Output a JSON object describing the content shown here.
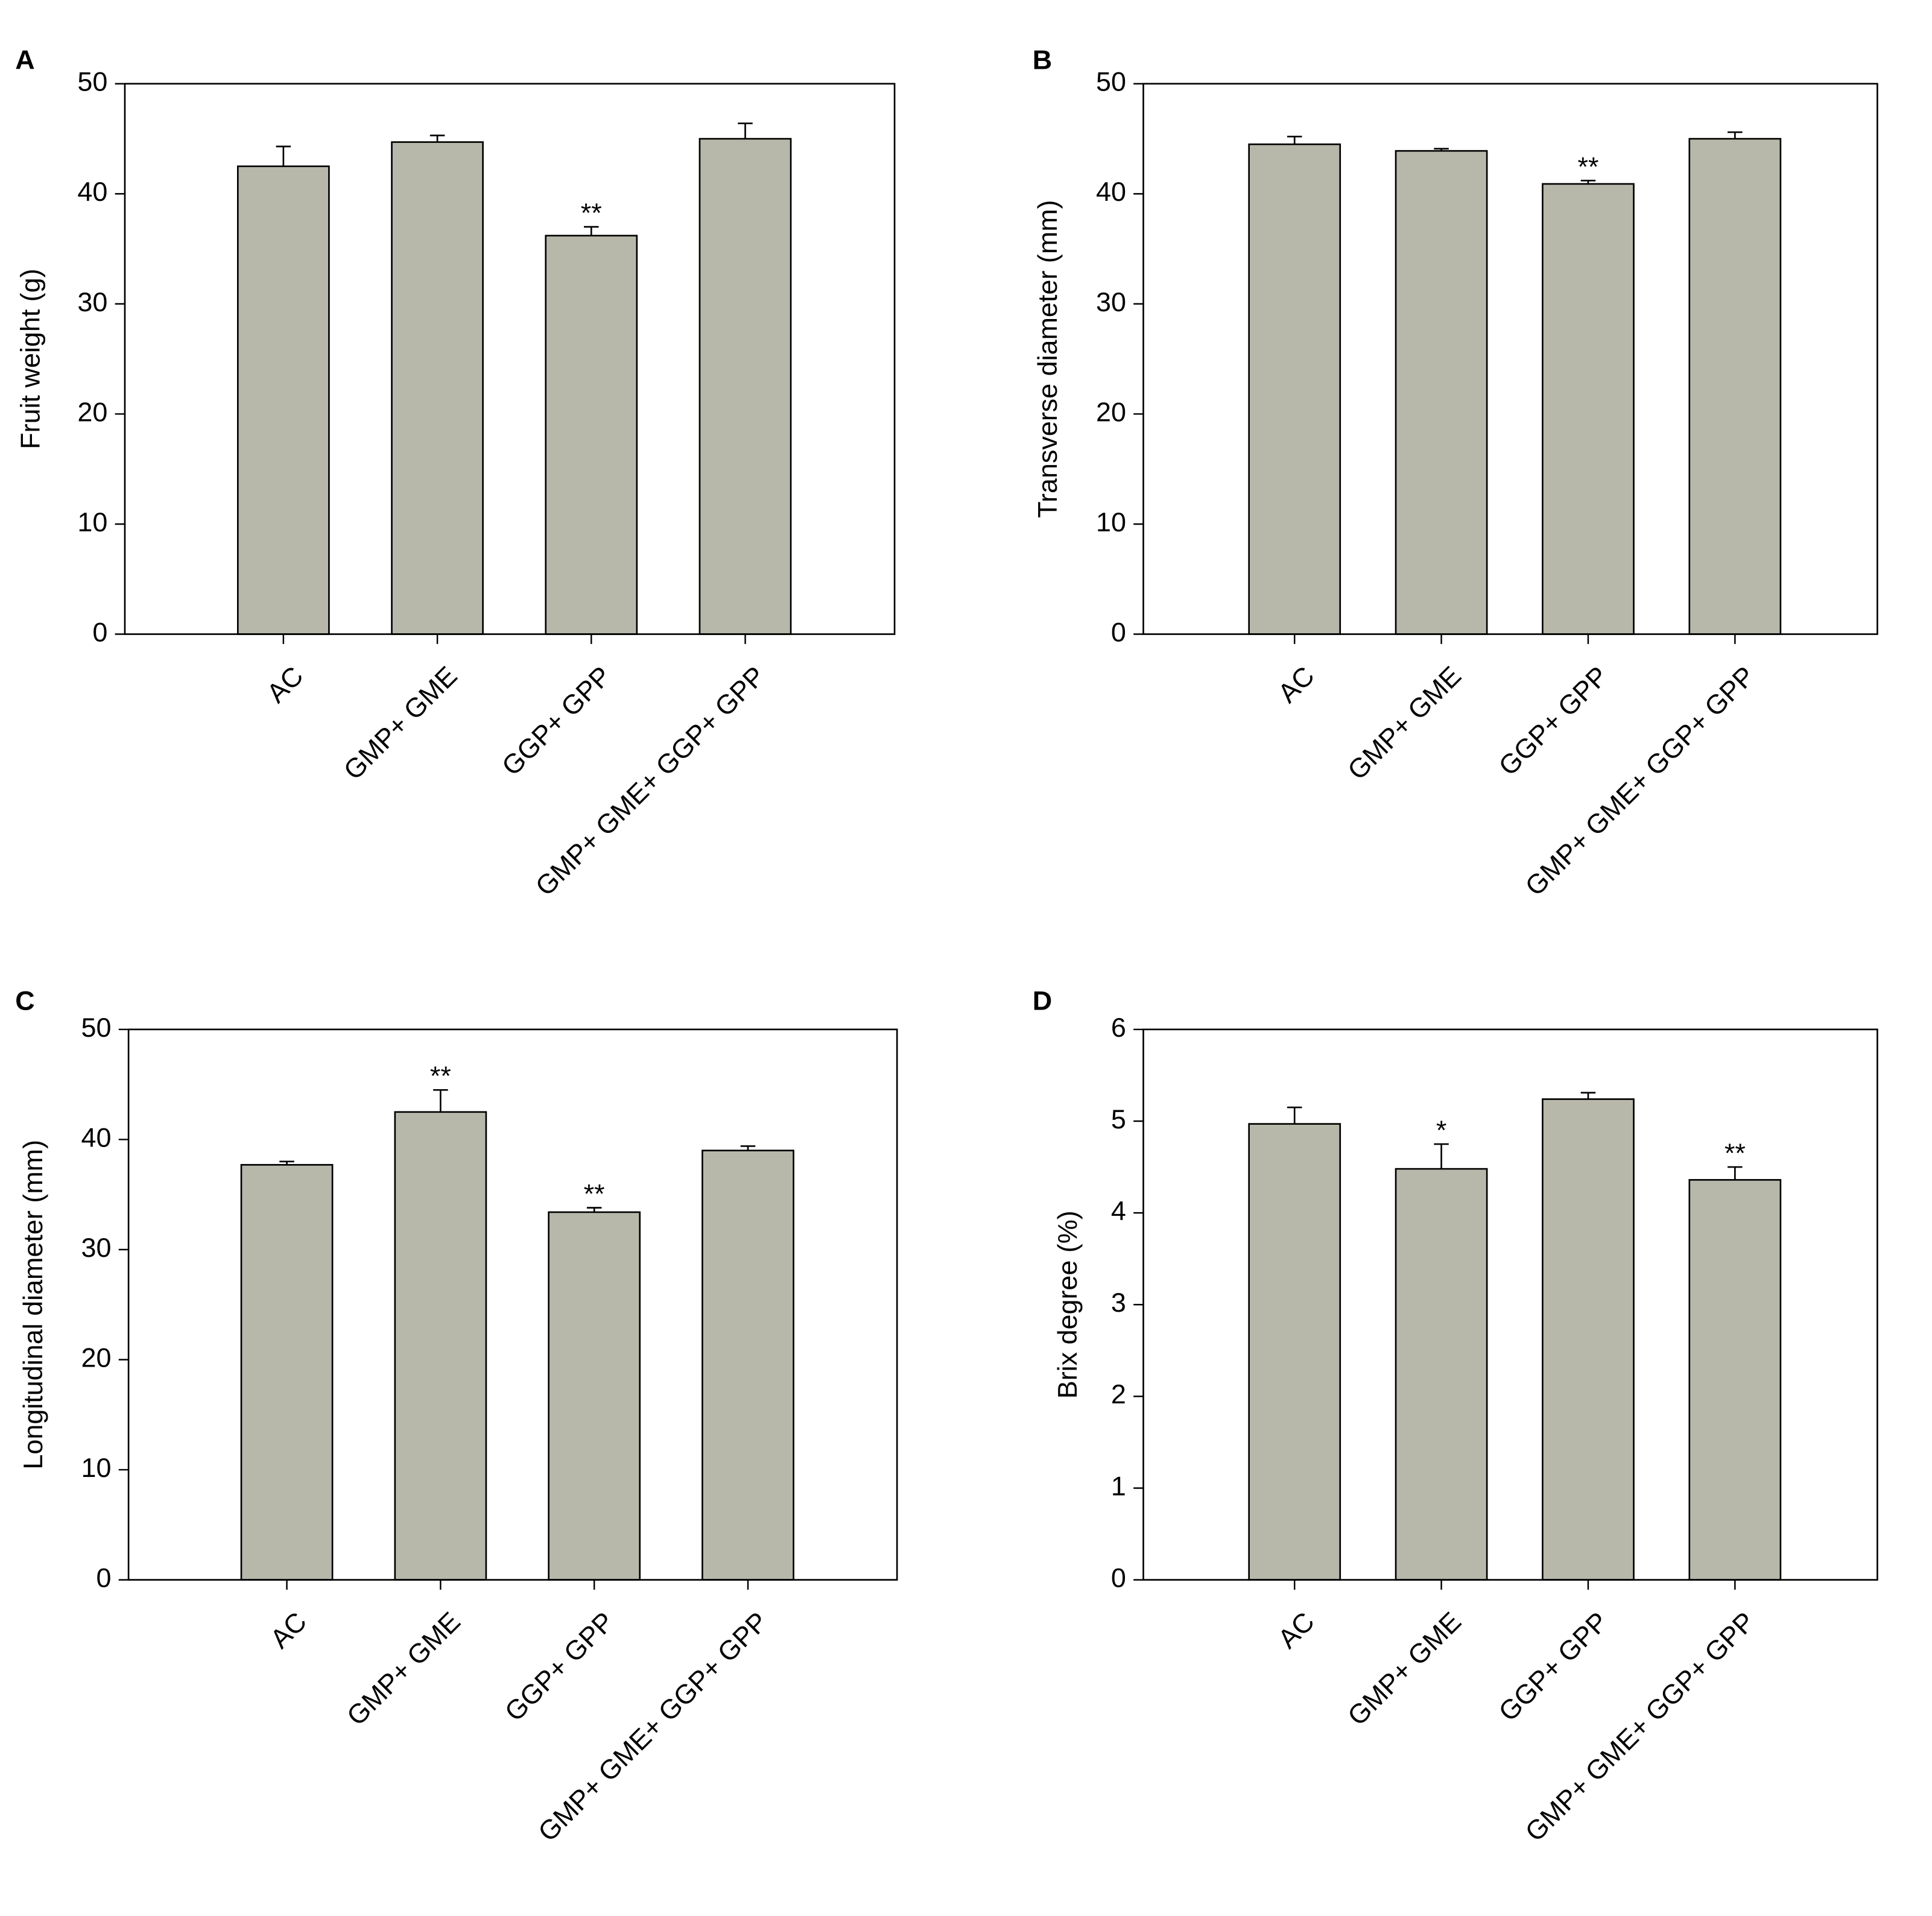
{
  "chart_data": [
    {
      "type": "bar",
      "panel_label": "A",
      "y_label": "Fruit weight (g)",
      "categories": [
        "AC",
        "GMP+ GME",
        "GGP+ GPP",
        "GMP+ GME+ GGP+ GPP"
      ],
      "values": [
        42.5,
        44.7,
        36.2,
        45.0
      ],
      "errors": [
        1.8,
        0.6,
        0.8,
        1.4
      ],
      "annotations": [
        null,
        null,
        "**",
        null
      ],
      "color": "#b8b8aa",
      "ylim": [
        0,
        50
      ],
      "yticks": [
        0,
        10,
        20,
        30,
        40,
        50
      ]
    },
    {
      "type": "bar",
      "panel_label": "B",
      "y_label": "Transverse diameter (mm)",
      "categories": [
        "AC",
        "GMP+ GME",
        "GGP+ GPP",
        "GMP+ GME+ GGP+ GPP"
      ],
      "values": [
        44.5,
        43.9,
        40.9,
        45.0
      ],
      "errors": [
        0.7,
        0.2,
        0.3,
        0.6
      ],
      "annotations": [
        null,
        null,
        "**",
        null
      ],
      "color": "#b8b8aa",
      "ylim": [
        0,
        50
      ],
      "yticks": [
        0,
        10,
        20,
        30,
        40,
        50
      ]
    },
    {
      "type": "bar",
      "panel_label": "C",
      "y_label": "Longitudinal diameter (mm)",
      "categories": [
        "AC",
        "GMP+ GME",
        "GGP+ GPP",
        "GMP+ GME+ GGP+ GPP"
      ],
      "values": [
        37.7,
        42.5,
        33.4,
        39.0
      ],
      "errors": [
        0.3,
        2.0,
        0.4,
        0.4
      ],
      "annotations": [
        null,
        "**",
        "**",
        null
      ],
      "color": "#b8b8aa",
      "ylim": [
        0,
        50
      ],
      "yticks": [
        0,
        10,
        20,
        30,
        40,
        50
      ]
    },
    {
      "type": "bar",
      "panel_label": "D",
      "y_label": "Brix degree (%)",
      "categories": [
        "AC",
        "GMP+ GME",
        "GGP+ GPP",
        "GMP+ GME+ GGP+ GPP"
      ],
      "values": [
        4.97,
        4.48,
        5.24,
        4.36
      ],
      "errors": [
        0.18,
        0.27,
        0.07,
        0.14
      ],
      "annotations": [
        null,
        "*",
        null,
        "**"
      ],
      "color": "#b8b8aa",
      "ylim": [
        0,
        6
      ],
      "yticks": [
        0,
        1,
        2,
        3,
        4,
        5,
        6
      ]
    }
  ]
}
